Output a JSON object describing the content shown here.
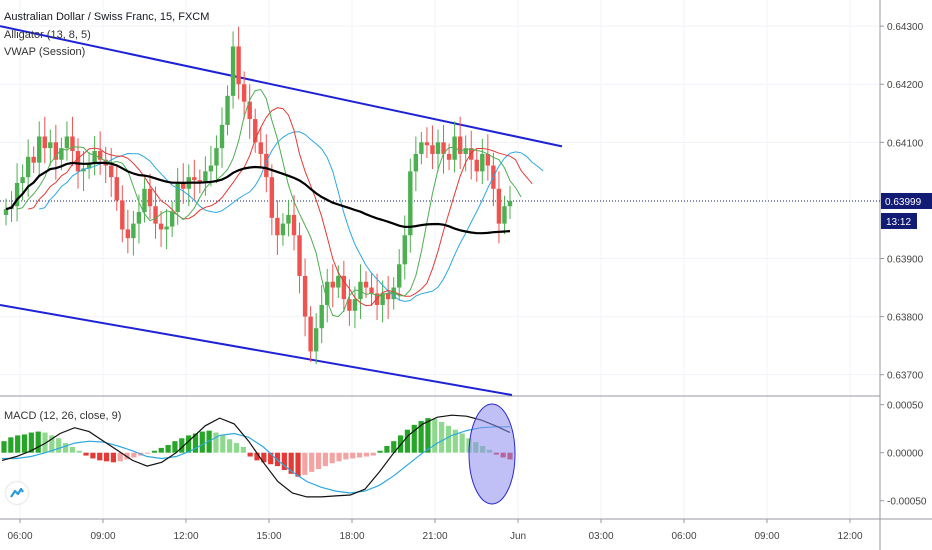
{
  "legend": {
    "symbol": "Australian Dollar / Swiss Franc, 15, FXCM",
    "alligator": "Alligator (13, 8, 5)",
    "vwap": "VWAP (Session)",
    "macd": "MACD (12, 26, close, 9)"
  },
  "price_axis": {
    "ticks": [
      "0.64300",
      "0.64200",
      "0.64100",
      "0.63999",
      "0.63900",
      "0.63800",
      "0.63700"
    ],
    "current_price": "0.63999",
    "countdown": "13:12"
  },
  "macd_axis": {
    "ticks": [
      "0.00050",
      "0.00000",
      "-0.00050"
    ]
  },
  "time_axis": {
    "ticks": [
      "06:00",
      "09:00",
      "12:00",
      "15:00",
      "18:00",
      "21:00",
      "Jun",
      "03:00",
      "06:00",
      "09:00",
      "12:00"
    ]
  },
  "colors": {
    "up": "#4caf50",
    "down": "#ef5350",
    "trendline": "#1e22d6",
    "jaw": "#2ca8e0",
    "teeth": "#e53935",
    "lips": "#4caf50",
    "vwap": "#000000",
    "macd_line": "#111111",
    "signal_line": "#2ca8e0",
    "hist_up_strong": "#26a626",
    "hist_up_weak": "#8fd98f",
    "hist_down_strong": "#e53935",
    "hist_down_weak": "#f4a3a3",
    "current_price_tag": "#131c75",
    "ellipse_fill": "#8c8cf0"
  },
  "chart_data": {
    "type": "candlestick",
    "title": "Australian Dollar / Swiss Franc, 15, FXCM",
    "interval": "15",
    "ylim": [
      0.63665,
      0.64345
    ],
    "current_price": 0.63999,
    "x_ticks": [
      "06:00",
      "09:00",
      "12:00",
      "15:00",
      "18:00",
      "21:00",
      "Jun",
      "03:00",
      "06:00",
      "09:00",
      "12:00"
    ],
    "candles_close": [
      0.63985,
      0.6399,
      0.6403,
      0.6404,
      0.64075,
      0.64065,
      0.6411,
      0.6409,
      0.641,
      0.6407,
      0.6409,
      0.6411,
      0.64085,
      0.6405,
      0.64055,
      0.64065,
      0.64085,
      0.6407,
      0.6406,
      0.6404,
      0.64,
      0.6395,
      0.63935,
      0.6396,
      0.6398,
      0.6402,
      0.6399,
      0.6396,
      0.6395,
      0.63955,
      0.6398,
      0.6403,
      0.6402,
      0.6404,
      0.64035,
      0.6403,
      0.6405,
      0.6406,
      0.6409,
      0.6413,
      0.6418,
      0.64265,
      0.642,
      0.6417,
      0.6414,
      0.641,
      0.6408,
      0.6404,
      0.6397,
      0.6394,
      0.6396,
      0.63975,
      0.6394,
      0.6387,
      0.638,
      0.6374,
      0.6378,
      0.6382,
      0.6386,
      0.6385,
      0.6387,
      0.6383,
      0.6381,
      0.6383,
      0.6386,
      0.6385,
      0.6384,
      0.6382,
      0.6384,
      0.6383,
      0.6385,
      0.6389,
      0.6394,
      0.6405,
      0.6408,
      0.641,
      0.64095,
      0.6408,
      0.641,
      0.6408,
      0.6407,
      0.6411,
      0.6408,
      0.6409,
      0.6407,
      0.6405,
      0.6408,
      0.6406,
      0.6402,
      0.6396,
      0.6399,
      0.63999
    ],
    "overlays": [
      "Alligator (13, 8, 5)",
      "VWAP (Session)"
    ],
    "trendlines": [
      "upper channel",
      "lower channel"
    ],
    "macd": {
      "title": "MACD (12, 26, close, 9)",
      "ylim": [
        -0.00068,
        0.00058
      ],
      "y_ticks": [
        0.0005,
        0.0,
        -0.0005
      ],
      "histogram": [
        0.00012,
        0.00016,
        0.00018,
        0.00019,
        0.00021,
        0.00022,
        0.00021,
        0.00018,
        0.00015,
        0.0001,
        6e-05,
        2e-05,
        -3e-05,
        -6e-05,
        -8e-05,
        -9e-05,
        -0.0001,
        -9e-05,
        -7e-05,
        -5e-05,
        -3e-05,
        -1e-05,
        2e-05,
        5e-05,
        8e-05,
        0.00012,
        0.00015,
        0.00018,
        0.0002,
        0.00022,
        0.00023,
        0.00021,
        0.00018,
        0.00014,
        0.0001,
        6e-05,
        -4e-05,
        -8e-05,
        -0.0001,
        -0.00012,
        -0.00014,
        -0.00018,
        -0.00022,
        -0.00025,
        -0.00023,
        -0.0002,
        -0.00017,
        -0.00014,
        -0.00011,
        -9e-05,
        -7e-05,
        -6e-05,
        -5e-05,
        -4e-05,
        -3e-05,
        2e-05,
        7e-05,
        0.00012,
        0.00018,
        0.00024,
        0.00029,
        0.00033,
        0.00036,
        0.00035,
        0.00032,
        0.00028,
        0.00024,
        0.0002,
        0.00015,
        0.00011,
        7e-05,
        3e-05,
        -2e-05,
        -5e-05,
        -7e-05
      ],
      "macd_line": [
        -8e-05,
        -4e-05,
        2e-05,
        0.0001,
        0.0002,
        0.00026,
        0.00022,
        0.00012,
        2e-05,
        -8e-05,
        -0.00014,
        -0.0001,
        0.0,
        0.00014,
        0.00028,
        0.00036,
        0.0003,
        0.00012,
        -0.0001,
        -0.0003,
        -0.00042,
        -0.00046,
        -0.00046,
        -0.00045,
        -0.00044,
        -0.00038,
        -0.0002,
        0.0,
        0.00018,
        0.0003,
        0.00037,
        0.00039,
        0.00038,
        0.00034,
        0.00028,
        0.00021
      ],
      "signal_line": [
        -6e-05,
        -6e-05,
        -4e-05,
        0.0,
        5e-05,
        0.0001,
        0.00012,
        0.00011,
        7e-05,
        2e-05,
        -4e-05,
        -6e-05,
        -4e-05,
        2e-05,
        0.0001,
        0.00018,
        0.0002,
        0.00016,
        6e-05,
        -8e-05,
        -0.0002,
        -0.0003,
        -0.00036,
        -0.0004,
        -0.00042,
        -0.0004,
        -0.00034,
        -0.00024,
        -0.00012,
        0.0,
        0.0001,
        0.00018,
        0.00023,
        0.00026,
        0.00027,
        0.00027
      ]
    }
  }
}
